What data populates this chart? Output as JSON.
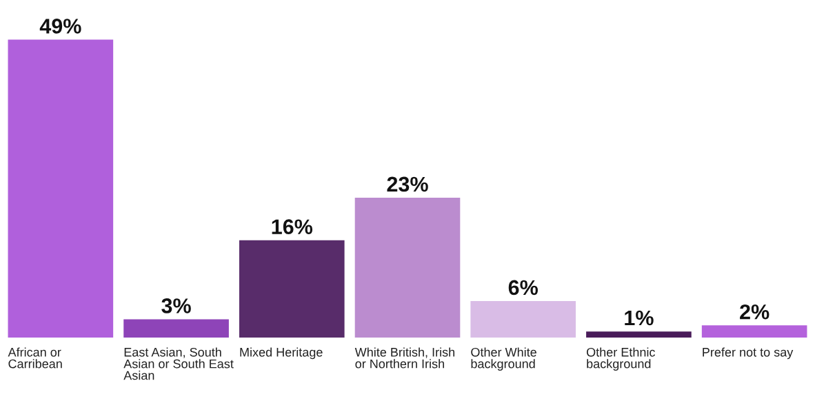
{
  "chart_data": {
    "type": "bar",
    "categories": [
      "African or Carribean",
      "East Asian, South Asian or South East Asian",
      "Mixed Heritage",
      "White British, Irish or Northern Irish",
      "Other White background",
      "Other Ethnic background",
      "Prefer not to say"
    ],
    "values": [
      49,
      3,
      16,
      23,
      6,
      1,
      2
    ],
    "value_labels": [
      "49%",
      "3%",
      "16%",
      "23%",
      "6%",
      "1%",
      "2%"
    ],
    "colors": [
      "#b060dc",
      "#8e44b8",
      "#582c6a",
      "#bb8ccf",
      "#d9bce6",
      "#4a1c5a",
      "#b462dc"
    ],
    "tick_labels": "x"
  }
}
